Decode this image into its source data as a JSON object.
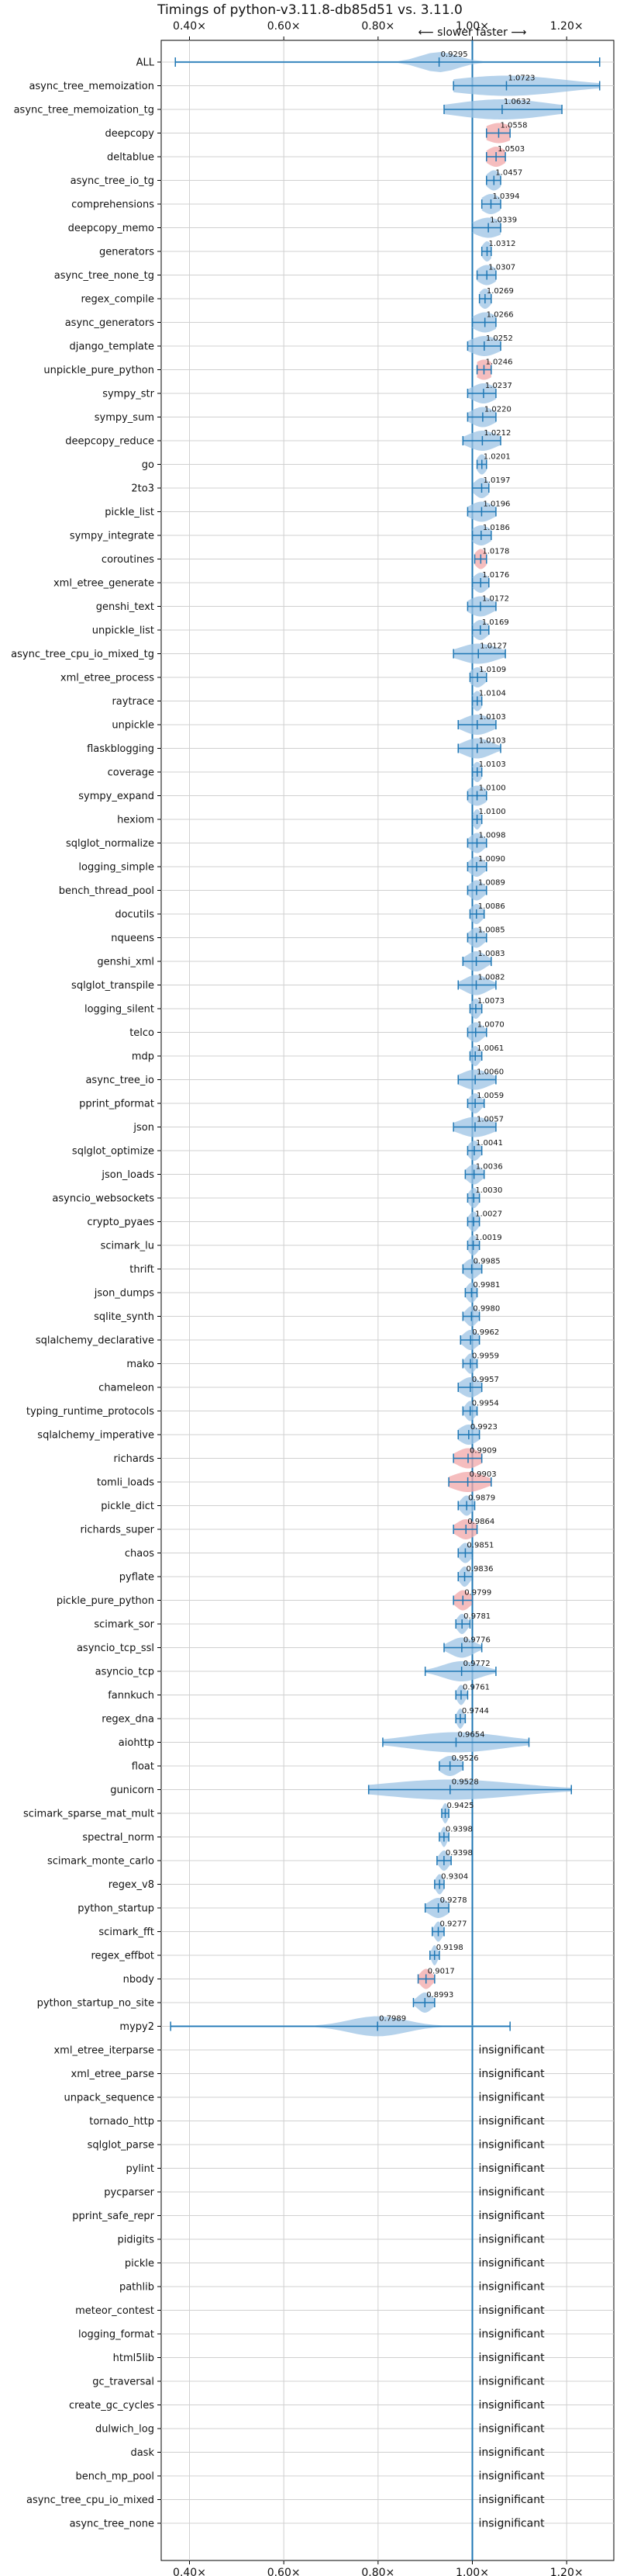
{
  "chart_data": {
    "type": "violin",
    "title": "Timings of python-v3.11.8-db85d51 vs. 3.11.0",
    "subtitle": "⟵ slower  faster ⟶",
    "x_ticks": [
      "0.40×",
      "0.60×",
      "0.80×",
      "1.00×",
      "1.20×"
    ],
    "xlim": [
      0.34,
      1.3
    ],
    "reference": 1.0,
    "rows": [
      {
        "name": "ALL",
        "value": 0.9295,
        "value_label": "0.9295",
        "min": 0.37,
        "max": 1.27,
        "spread": 0.04
      },
      {
        "name": "async_tree_memoization",
        "value": 1.0723,
        "value_label": "1.0723",
        "min": 0.96,
        "max": 1.27,
        "spread": 0.12
      },
      {
        "name": "async_tree_memoization_tg",
        "value": 1.0632,
        "value_label": "1.0632",
        "min": 0.94,
        "max": 1.19,
        "spread": 0.1
      },
      {
        "name": "deepcopy",
        "value": 1.0558,
        "value_label": "1.0558",
        "min": 1.03,
        "max": 1.08,
        "spread": 0.03,
        "highlight": true
      },
      {
        "name": "deltablue",
        "value": 1.0503,
        "value_label": "1.0503",
        "min": 1.03,
        "max": 1.07,
        "spread": 0.02,
        "highlight": true
      },
      {
        "name": "async_tree_io_tg",
        "value": 1.0457,
        "value_label": "1.0457",
        "min": 1.03,
        "max": 1.06,
        "spread": 0.015
      },
      {
        "name": "comprehensions",
        "value": 1.0394,
        "value_label": "1.0394",
        "min": 1.02,
        "max": 1.06,
        "spread": 0.02
      },
      {
        "name": "deepcopy_memo",
        "value": 1.0339,
        "value_label": "1.0339",
        "min": 1.0,
        "max": 1.06,
        "spread": 0.03
      },
      {
        "name": "generators",
        "value": 1.0312,
        "value_label": "1.0312",
        "min": 1.02,
        "max": 1.04,
        "spread": 0.01
      },
      {
        "name": "async_tree_none_tg",
        "value": 1.0307,
        "value_label": "1.0307",
        "min": 1.01,
        "max": 1.05,
        "spread": 0.02
      },
      {
        "name": "regex_compile",
        "value": 1.0269,
        "value_label": "1.0269",
        "min": 1.015,
        "max": 1.04,
        "spread": 0.012
      },
      {
        "name": "async_generators",
        "value": 1.0266,
        "value_label": "1.0266",
        "min": 1.0,
        "max": 1.05,
        "spread": 0.025
      },
      {
        "name": "django_template",
        "value": 1.0252,
        "value_label": "1.0252",
        "min": 0.99,
        "max": 1.06,
        "spread": 0.03
      },
      {
        "name": "unpickle_pure_python",
        "value": 1.0246,
        "value_label": "1.0246",
        "min": 1.01,
        "max": 1.04,
        "spread": 0.02,
        "highlight": true
      },
      {
        "name": "sympy_str",
        "value": 1.0237,
        "value_label": "1.0237",
        "min": 0.99,
        "max": 1.05,
        "spread": 0.025
      },
      {
        "name": "sympy_sum",
        "value": 1.022,
        "value_label": "1.0220",
        "min": 0.99,
        "max": 1.05,
        "spread": 0.025
      },
      {
        "name": "deepcopy_reduce",
        "value": 1.0212,
        "value_label": "1.0212",
        "min": 0.98,
        "max": 1.06,
        "spread": 0.03
      },
      {
        "name": "go",
        "value": 1.0201,
        "value_label": "1.0201",
        "min": 1.01,
        "max": 1.03,
        "spread": 0.01
      },
      {
        "name": "2to3",
        "value": 1.0197,
        "value_label": "1.0197",
        "min": 1.0,
        "max": 1.035,
        "spread": 0.015
      },
      {
        "name": "pickle_list",
        "value": 1.0196,
        "value_label": "1.0196",
        "min": 0.99,
        "max": 1.05,
        "spread": 0.025
      },
      {
        "name": "sympy_integrate",
        "value": 1.0186,
        "value_label": "1.0186",
        "min": 1.0,
        "max": 1.04,
        "spread": 0.02
      },
      {
        "name": "coroutines",
        "value": 1.0178,
        "value_label": "1.0178",
        "min": 1.005,
        "max": 1.03,
        "spread": 0.012,
        "highlight": true
      },
      {
        "name": "xml_etree_generate",
        "value": 1.0176,
        "value_label": "1.0176",
        "min": 1.0,
        "max": 1.035,
        "spread": 0.015
      },
      {
        "name": "genshi_text",
        "value": 1.0172,
        "value_label": "1.0172",
        "min": 0.99,
        "max": 1.05,
        "spread": 0.025
      },
      {
        "name": "unpickle_list",
        "value": 1.0169,
        "value_label": "1.0169",
        "min": 1.0,
        "max": 1.035,
        "spread": 0.015
      },
      {
        "name": "async_tree_cpu_io_mixed_tg",
        "value": 1.0127,
        "value_label": "1.0127",
        "min": 0.96,
        "max": 1.07,
        "spread": 0.04
      },
      {
        "name": "xml_etree_process",
        "value": 1.0109,
        "value_label": "1.0109",
        "min": 0.995,
        "max": 1.03,
        "spread": 0.015
      },
      {
        "name": "raytrace",
        "value": 1.0104,
        "value_label": "1.0104",
        "min": 1.0,
        "max": 1.02,
        "spread": 0.01
      },
      {
        "name": "unpickle",
        "value": 1.0103,
        "value_label": "1.0103",
        "min": 0.97,
        "max": 1.05,
        "spread": 0.03
      },
      {
        "name": "flaskblogging",
        "value": 1.0103,
        "value_label": "1.0103",
        "min": 0.97,
        "max": 1.06,
        "spread": 0.03
      },
      {
        "name": "coverage",
        "value": 1.0103,
        "value_label": "1.0103",
        "min": 1.0,
        "max": 1.02,
        "spread": 0.01
      },
      {
        "name": "sympy_expand",
        "value": 1.01,
        "value_label": "1.0100",
        "min": 0.99,
        "max": 1.03,
        "spread": 0.02
      },
      {
        "name": "hexiom",
        "value": 1.01,
        "value_label": "1.0100",
        "min": 1.0,
        "max": 1.02,
        "spread": 0.008
      },
      {
        "name": "sqlglot_normalize",
        "value": 1.0098,
        "value_label": "1.0098",
        "min": 0.99,
        "max": 1.03,
        "spread": 0.015
      },
      {
        "name": "logging_simple",
        "value": 1.009,
        "value_label": "1.0090",
        "min": 0.99,
        "max": 1.03,
        "spread": 0.015
      },
      {
        "name": "bench_thread_pool",
        "value": 1.0089,
        "value_label": "1.0089",
        "min": 0.99,
        "max": 1.03,
        "spread": 0.015
      },
      {
        "name": "docutils",
        "value": 1.0086,
        "value_label": "1.0086",
        "min": 0.995,
        "max": 1.025,
        "spread": 0.012
      },
      {
        "name": "nqueens",
        "value": 1.0085,
        "value_label": "1.0085",
        "min": 0.99,
        "max": 1.03,
        "spread": 0.015
      },
      {
        "name": "genshi_xml",
        "value": 1.0083,
        "value_label": "1.0083",
        "min": 0.98,
        "max": 1.04,
        "spread": 0.02
      },
      {
        "name": "sqlglot_transpile",
        "value": 1.0082,
        "value_label": "1.0082",
        "min": 0.97,
        "max": 1.05,
        "spread": 0.025
      },
      {
        "name": "logging_silent",
        "value": 1.0073,
        "value_label": "1.0073",
        "min": 0.995,
        "max": 1.02,
        "spread": 0.01
      },
      {
        "name": "telco",
        "value": 1.007,
        "value_label": "1.0070",
        "min": 0.99,
        "max": 1.03,
        "spread": 0.015
      },
      {
        "name": "mdp",
        "value": 1.0061,
        "value_label": "1.0061",
        "min": 0.995,
        "max": 1.02,
        "spread": 0.01
      },
      {
        "name": "async_tree_io",
        "value": 1.006,
        "value_label": "1.0060",
        "min": 0.97,
        "max": 1.05,
        "spread": 0.03
      },
      {
        "name": "pprint_pformat",
        "value": 1.0059,
        "value_label": "1.0059",
        "min": 0.99,
        "max": 1.025,
        "spread": 0.012
      },
      {
        "name": "json",
        "value": 1.0057,
        "value_label": "1.0057",
        "min": 0.96,
        "max": 1.05,
        "spread": 0.035
      },
      {
        "name": "sqlglot_optimize",
        "value": 1.0041,
        "value_label": "1.0041",
        "min": 0.99,
        "max": 1.02,
        "spread": 0.012
      },
      {
        "name": "json_loads",
        "value": 1.0036,
        "value_label": "1.0036",
        "min": 0.985,
        "max": 1.025,
        "spread": 0.015
      },
      {
        "name": "asyncio_websockets",
        "value": 1.003,
        "value_label": "1.0030",
        "min": 0.99,
        "max": 1.015,
        "spread": 0.01
      },
      {
        "name": "crypto_pyaes",
        "value": 1.0027,
        "value_label": "1.0027",
        "min": 0.99,
        "max": 1.015,
        "spread": 0.01
      },
      {
        "name": "scimark_lu",
        "value": 1.0019,
        "value_label": "1.0019",
        "min": 0.99,
        "max": 1.015,
        "spread": 0.01
      },
      {
        "name": "thrift",
        "value": 0.9985,
        "value_label": "0.9985",
        "min": 0.98,
        "max": 1.02,
        "spread": 0.015
      },
      {
        "name": "json_dumps",
        "value": 0.9981,
        "value_label": "0.9981",
        "min": 0.985,
        "max": 1.01,
        "spread": 0.01
      },
      {
        "name": "sqlite_synth",
        "value": 0.998,
        "value_label": "0.9980",
        "min": 0.98,
        "max": 1.015,
        "spread": 0.012
      },
      {
        "name": "sqlalchemy_declarative",
        "value": 0.9962,
        "value_label": "0.9962",
        "min": 0.975,
        "max": 1.015,
        "spread": 0.015
      },
      {
        "name": "mako",
        "value": 0.9959,
        "value_label": "0.9959",
        "min": 0.98,
        "max": 1.01,
        "spread": 0.01
      },
      {
        "name": "chameleon",
        "value": 0.9957,
        "value_label": "0.9957",
        "min": 0.97,
        "max": 1.02,
        "spread": 0.02
      },
      {
        "name": "typing_runtime_protocols",
        "value": 0.9954,
        "value_label": "0.9954",
        "min": 0.98,
        "max": 1.01,
        "spread": 0.01
      },
      {
        "name": "sqlalchemy_imperative",
        "value": 0.9923,
        "value_label": "0.9923",
        "min": 0.97,
        "max": 1.015,
        "spread": 0.02
      },
      {
        "name": "richards",
        "value": 0.9909,
        "value_label": "0.9909",
        "min": 0.96,
        "max": 1.02,
        "spread": 0.025,
        "highlight": true
      },
      {
        "name": "tomli_loads",
        "value": 0.9903,
        "value_label": "0.9903",
        "min": 0.95,
        "max": 1.04,
        "spread": 0.035,
        "highlight": true
      },
      {
        "name": "pickle_dict",
        "value": 0.9879,
        "value_label": "0.9879",
        "min": 0.97,
        "max": 1.005,
        "spread": 0.012
      },
      {
        "name": "richards_super",
        "value": 0.9864,
        "value_label": "0.9864",
        "min": 0.96,
        "max": 1.01,
        "spread": 0.02,
        "highlight": true
      },
      {
        "name": "chaos",
        "value": 0.9851,
        "value_label": "0.9851",
        "min": 0.97,
        "max": 1.0,
        "spread": 0.012
      },
      {
        "name": "pyflate",
        "value": 0.9836,
        "value_label": "0.9836",
        "min": 0.97,
        "max": 1.0,
        "spread": 0.01
      },
      {
        "name": "pickle_pure_python",
        "value": 0.9799,
        "value_label": "0.9799",
        "min": 0.96,
        "max": 1.0,
        "spread": 0.015,
        "highlight": true
      },
      {
        "name": "scimark_sor",
        "value": 0.9781,
        "value_label": "0.9781",
        "min": 0.965,
        "max": 0.995,
        "spread": 0.01
      },
      {
        "name": "asyncio_tcp_ssl",
        "value": 0.9776,
        "value_label": "0.9776",
        "min": 0.94,
        "max": 1.02,
        "spread": 0.025
      },
      {
        "name": "asyncio_tcp",
        "value": 0.9772,
        "value_label": "0.9772",
        "min": 0.9,
        "max": 1.05,
        "spread": 0.04
      },
      {
        "name": "fannkuch",
        "value": 0.9761,
        "value_label": "0.9761",
        "min": 0.965,
        "max": 0.99,
        "spread": 0.008
      },
      {
        "name": "regex_dna",
        "value": 0.9744,
        "value_label": "0.9744",
        "min": 0.965,
        "max": 0.985,
        "spread": 0.007
      },
      {
        "name": "aiohttp",
        "value": 0.9654,
        "value_label": "0.9654",
        "min": 0.81,
        "max": 1.12,
        "spread": 0.1
      },
      {
        "name": "float",
        "value": 0.9526,
        "value_label": "0.9526",
        "min": 0.93,
        "max": 0.98,
        "spread": 0.02
      },
      {
        "name": "gunicorn",
        "value": 0.9528,
        "value_label": "0.9528",
        "min": 0.78,
        "max": 1.21,
        "spread": 0.14
      },
      {
        "name": "scimark_sparse_mat_mult",
        "value": 0.9425,
        "value_label": "0.9425",
        "min": 0.935,
        "max": 0.95,
        "spread": 0.006
      },
      {
        "name": "spectral_norm",
        "value": 0.9398,
        "value_label": "0.9398",
        "min": 0.93,
        "max": 0.95,
        "spread": 0.006
      },
      {
        "name": "scimark_monte_carlo",
        "value": 0.9398,
        "value_label": "0.9398",
        "min": 0.925,
        "max": 0.955,
        "spread": 0.01
      },
      {
        "name": "regex_v8",
        "value": 0.9304,
        "value_label": "0.9304",
        "min": 0.92,
        "max": 0.94,
        "spread": 0.008
      },
      {
        "name": "python_startup",
        "value": 0.9278,
        "value_label": "0.9278",
        "min": 0.9,
        "max": 0.95,
        "spread": 0.02
      },
      {
        "name": "scimark_fft",
        "value": 0.9277,
        "value_label": "0.9277",
        "min": 0.915,
        "max": 0.94,
        "spread": 0.008
      },
      {
        "name": "regex_effbot",
        "value": 0.9198,
        "value_label": "0.9198",
        "min": 0.91,
        "max": 0.93,
        "spread": 0.006
      },
      {
        "name": "nbody",
        "value": 0.9017,
        "value_label": "0.9017",
        "min": 0.885,
        "max": 0.92,
        "spread": 0.012,
        "highlight": true
      },
      {
        "name": "python_startup_no_site",
        "value": 0.8993,
        "value_label": "0.8993",
        "min": 0.875,
        "max": 0.92,
        "spread": 0.015
      },
      {
        "name": "mypy2",
        "value": 0.7989,
        "value_label": "0.7989",
        "min": 0.36,
        "max": 1.08,
        "spread": 0.06
      },
      {
        "name": "xml_etree_iterparse",
        "insignificant": true
      },
      {
        "name": "xml_etree_parse",
        "insignificant": true
      },
      {
        "name": "unpack_sequence",
        "insignificant": true
      },
      {
        "name": "tornado_http",
        "insignificant": true
      },
      {
        "name": "sqlglot_parse",
        "insignificant": true
      },
      {
        "name": "pylint",
        "insignificant": true
      },
      {
        "name": "pycparser",
        "insignificant": true
      },
      {
        "name": "pprint_safe_repr",
        "insignificant": true
      },
      {
        "name": "pidigits",
        "insignificant": true
      },
      {
        "name": "pickle",
        "insignificant": true
      },
      {
        "name": "pathlib",
        "insignificant": true
      },
      {
        "name": "meteor_contest",
        "insignificant": true
      },
      {
        "name": "logging_format",
        "insignificant": true
      },
      {
        "name": "html5lib",
        "insignificant": true
      },
      {
        "name": "gc_traversal",
        "insignificant": true
      },
      {
        "name": "create_gc_cycles",
        "insignificant": true
      },
      {
        "name": "dulwich_log",
        "insignificant": true
      },
      {
        "name": "dask",
        "insignificant": true
      },
      {
        "name": "bench_mp_pool",
        "insignificant": true
      },
      {
        "name": "async_tree_cpu_io_mixed",
        "insignificant": true
      },
      {
        "name": "async_tree_none",
        "insignificant": true
      }
    ],
    "insignificant_label": "insignificant",
    "grid": true,
    "colors": {
      "violin": "#9cc3e4",
      "violin_highlight": "#f2a7a8",
      "line": "#1f77b4",
      "grid": "#d0d0d0",
      "border": "#000000"
    }
  }
}
